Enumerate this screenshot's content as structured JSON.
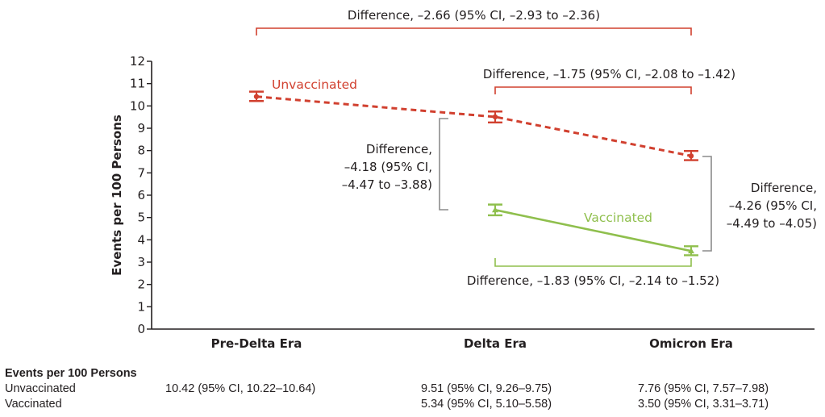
{
  "chart_data": {
    "type": "line",
    "title": "",
    "xlabel": "",
    "ylabel": "Events per 100 Persons",
    "ylim": [
      0,
      12
    ],
    "yticks": [
      "0",
      "1",
      "2",
      "3",
      "4",
      "5",
      "6",
      "7",
      "8",
      "9",
      "10",
      "11",
      "12"
    ],
    "categories": [
      "Pre-Delta Era",
      "Delta Era",
      "Omicron Era"
    ],
    "grid": false,
    "series": [
      {
        "name": "Unvaccinated",
        "color": "#d1402f",
        "style": "dashed",
        "values": [
          10.42,
          9.51,
          7.76
        ],
        "ci_low": [
          10.22,
          9.26,
          7.57
        ],
        "ci_high": [
          10.64,
          9.75,
          7.98
        ]
      },
      {
        "name": "Vaccinated",
        "color": "#8fbf4d",
        "style": "solid",
        "values": [
          null,
          5.34,
          3.5
        ],
        "ci_low": [
          null,
          5.1,
          3.31
        ],
        "ci_high": [
          null,
          5.58,
          3.71
        ]
      }
    ],
    "annotations": [
      {
        "id": "diff-unvax-predelta-omicron",
        "text": "Difference, –2.66 (95% CI, –2.93 to –2.36)",
        "color": "#d1402f",
        "from": "Pre-Delta Era",
        "to": "Omicron Era"
      },
      {
        "id": "diff-unvax-delta-omicron",
        "text": "Difference, –1.75 (95% CI, –2.08 to –1.42)",
        "color": "#d1402f",
        "from": "Delta Era",
        "to": "Omicron Era"
      },
      {
        "id": "diff-delta-vax-unvax",
        "lines": [
          "Difference,",
          "–4.18 (95% CI,",
          "–4.47 to –3.88)"
        ],
        "color": "#8c8c8c",
        "at": "Delta Era"
      },
      {
        "id": "diff-omicron-vax-unvax",
        "lines": [
          "Difference,",
          "–4.26 (95% CI,",
          "–4.49 to –4.05)"
        ],
        "color": "#8c8c8c",
        "at": "Omicron Era"
      },
      {
        "id": "diff-vax-delta-omicron",
        "text": "Difference, –1.83 (95% CI, –2.14 to –1.52)",
        "color": "#8fbf4d",
        "from": "Delta Era",
        "to": "Omicron Era"
      }
    ]
  },
  "table": {
    "header": "Events per 100 Persons",
    "rows": [
      {
        "label": "Unvaccinated",
        "cells": [
          "10.42 (95% CI, 10.22–10.64)",
          "9.51 (95% CI, 9.26–9.75)",
          "7.76 (95% CI, 7.57–7.98)"
        ]
      },
      {
        "label": "Vaccinated",
        "cells": [
          "",
          "5.34 (95% CI, 5.10–5.58)",
          "3.50 (95% CI, 3.31–3.71)"
        ]
      }
    ]
  }
}
